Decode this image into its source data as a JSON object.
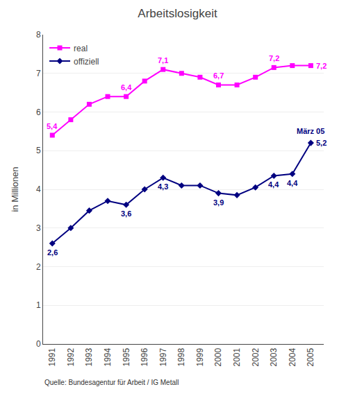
{
  "chart_data": {
    "type": "line",
    "title": "Arbeitslosigkeit",
    "ylabel": "in Millionen",
    "source": "Quelle: Bundesagentur für Arbeit / IG Metall",
    "x": [
      1991,
      1992,
      1993,
      1994,
      1995,
      1996,
      1997,
      1998,
      1999,
      2000,
      2001,
      2002,
      2003,
      2004,
      2005
    ],
    "series": [
      {
        "name": "real",
        "color": "#FF00FF",
        "marker": "square",
        "values": [
          5.4,
          5.8,
          6.2,
          6.4,
          6.4,
          6.8,
          7.1,
          7.0,
          6.9,
          6.7,
          6.7,
          6.9,
          7.15,
          7.2,
          7.2
        ],
        "value_labels": [
          "5,4",
          null,
          null,
          null,
          "6,4",
          null,
          "7,1",
          null,
          null,
          "6,7",
          null,
          null,
          "7,2",
          null,
          "7,2"
        ]
      },
      {
        "name": "offiziell",
        "color": "#000080",
        "marker": "diamond",
        "values": [
          2.6,
          3.0,
          3.45,
          3.7,
          3.6,
          4.0,
          4.3,
          4.1,
          4.1,
          3.9,
          3.85,
          4.05,
          4.35,
          4.4,
          5.2
        ],
        "value_labels": [
          "2,6",
          null,
          null,
          null,
          "3,6",
          null,
          "4,3",
          null,
          null,
          "3,9",
          null,
          null,
          "4,4",
          "4,4",
          "5,2"
        ]
      }
    ],
    "annotations": [
      {
        "text": "März 05",
        "x": 2005,
        "y": 5.2,
        "color": "#000080"
      }
    ],
    "xlim": [
      1990.5,
      2005.7
    ],
    "xticks": [
      1991,
      1992,
      1993,
      1994,
      1995,
      1996,
      1997,
      1998,
      1999,
      2000,
      2001,
      2002,
      2003,
      2004,
      2005
    ],
    "ylim": [
      0,
      8
    ],
    "yticks": [
      0,
      1,
      2,
      3,
      4,
      5,
      6,
      7,
      8
    ],
    "grid": "y",
    "legend": "upper left"
  }
}
